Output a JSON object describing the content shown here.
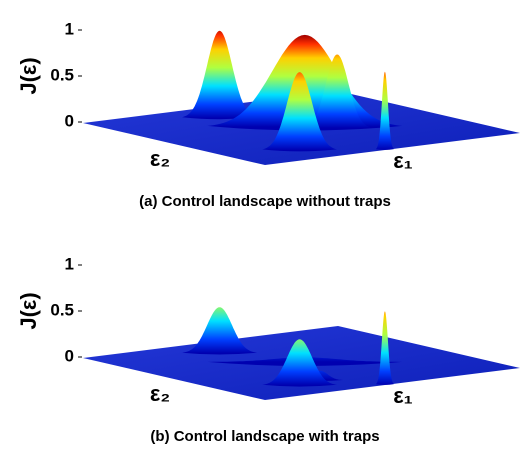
{
  "chart_data": [
    {
      "type": "surface",
      "zlabel": "J(ε)",
      "xlabel": "ε₁",
      "ylabel": "ε₂",
      "caption": "(a) Control landscape without traps",
      "xlim": [
        0,
        1
      ],
      "ylim": [
        0,
        1
      ],
      "zlim": [
        0,
        1
      ],
      "zticks": [
        0,
        0.5,
        1
      ],
      "peaks": {
        "x": [
          0.4,
          0.52,
          0.59,
          0.25,
          0.47
        ],
        "y": [
          0.81,
          0.51,
          0.43,
          0.16,
          0
        ],
        "values": [
          0.95,
          1,
          0.8,
          0.85,
          0.85
        ],
        "widths": [
          0.05,
          0.13,
          0.045,
          0.05,
          0.012
        ]
      }
    },
    {
      "type": "surface",
      "zlabel": "J(ε)",
      "xlabel": "ε₁",
      "ylabel": "ε₂",
      "caption": "(b) Control landscape with traps",
      "xlim": [
        0,
        1
      ],
      "ylim": [
        0,
        1
      ],
      "zlim": [
        0,
        1
      ],
      "zticks": [
        0,
        0.5,
        1
      ],
      "peaks": {
        "x": [
          0.4,
          0.52,
          0.36,
          0.25,
          0.47
        ],
        "y": [
          0.81,
          0.51,
          0.2,
          0.16,
          0
        ],
        "values": [
          0.5,
          0.05,
          0.1,
          0.5,
          0.8
        ],
        "widths": [
          0.05,
          0.13,
          0.03,
          0.05,
          0.012
        ]
      }
    }
  ]
}
